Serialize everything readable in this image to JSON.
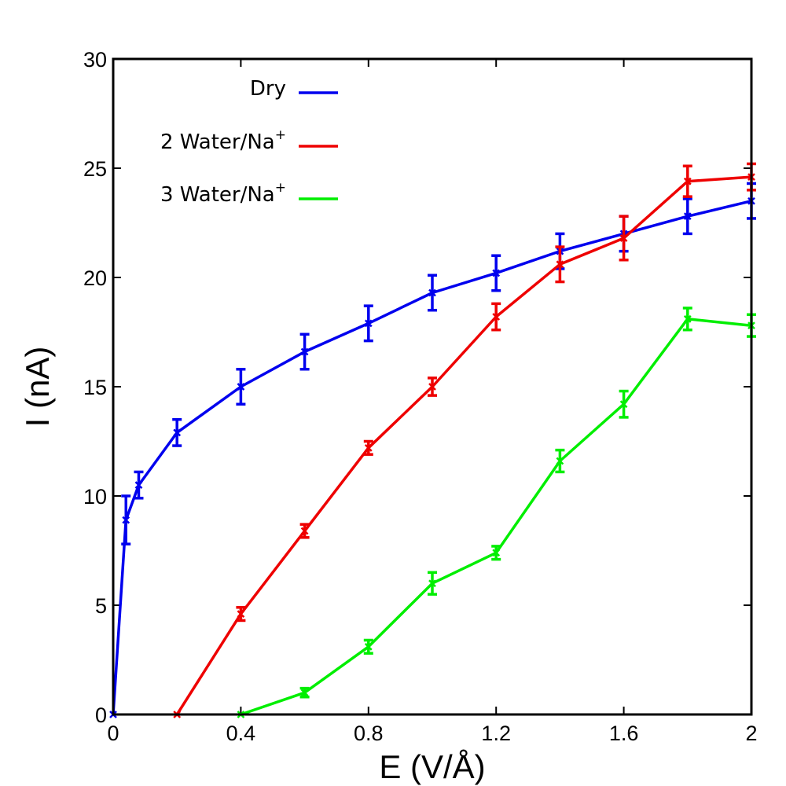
{
  "chart_data": {
    "type": "line",
    "title": "",
    "xlabel": "E (V/Å)",
    "ylabel": "I (nA)",
    "xlim": [
      0,
      2
    ],
    "ylim": [
      0,
      30
    ],
    "xticks": [
      0,
      0.4,
      0.8,
      1.2,
      1.6,
      2
    ],
    "xtick_labels": [
      "0",
      "0.4",
      "0.8",
      "1.2",
      "1.6",
      "2"
    ],
    "yticks": [
      0,
      5,
      10,
      15,
      20,
      25,
      30
    ],
    "ytick_labels": [
      "0",
      "5",
      "10",
      "15",
      "20",
      "25",
      "30"
    ],
    "grid": false,
    "legend_position": "top-left",
    "series": [
      {
        "name": "Dry",
        "name_base": "Dry",
        "name_sup": "",
        "color": "#0000ee",
        "marker": "x",
        "x": [
          0,
          0.04,
          0.08,
          0.2,
          0.4,
          0.6,
          0.8,
          1.0,
          1.2,
          1.4,
          1.6,
          1.8,
          2.0
        ],
        "y": [
          0,
          8.9,
          10.5,
          12.9,
          15.0,
          16.6,
          17.9,
          19.3,
          20.2,
          21.2,
          22.0,
          22.8,
          23.5
        ],
        "err": [
          0,
          1.1,
          0.6,
          0.6,
          0.8,
          0.8,
          0.8,
          0.8,
          0.8,
          0.8,
          0.8,
          0.8,
          0.8
        ]
      },
      {
        "name": "2 Water/Na+",
        "name_base": "2 Water/Na",
        "name_sup": "+",
        "color": "#ee0000",
        "marker": "x",
        "x": [
          0.2,
          0.4,
          0.6,
          0.8,
          1.0,
          1.2,
          1.4,
          1.6,
          1.8,
          2.0
        ],
        "y": [
          0,
          4.6,
          8.4,
          12.2,
          15.0,
          18.2,
          20.6,
          21.8,
          24.4,
          24.6
        ],
        "err": [
          0,
          0.3,
          0.3,
          0.3,
          0.4,
          0.6,
          0.8,
          1.0,
          0.7,
          0.6
        ]
      },
      {
        "name": "3 Water/Na+",
        "name_base": "3 Water/Na",
        "name_sup": "+",
        "color": "#00ee00",
        "marker": "x",
        "x": [
          0.4,
          0.6,
          0.8,
          1.0,
          1.2,
          1.4,
          1.6,
          1.8,
          2.0
        ],
        "y": [
          0,
          1.0,
          3.1,
          6.0,
          7.4,
          11.6,
          14.2,
          18.1,
          17.8
        ],
        "err": [
          0,
          0.2,
          0.3,
          0.5,
          0.3,
          0.5,
          0.6,
          0.5,
          0.5
        ]
      }
    ]
  }
}
